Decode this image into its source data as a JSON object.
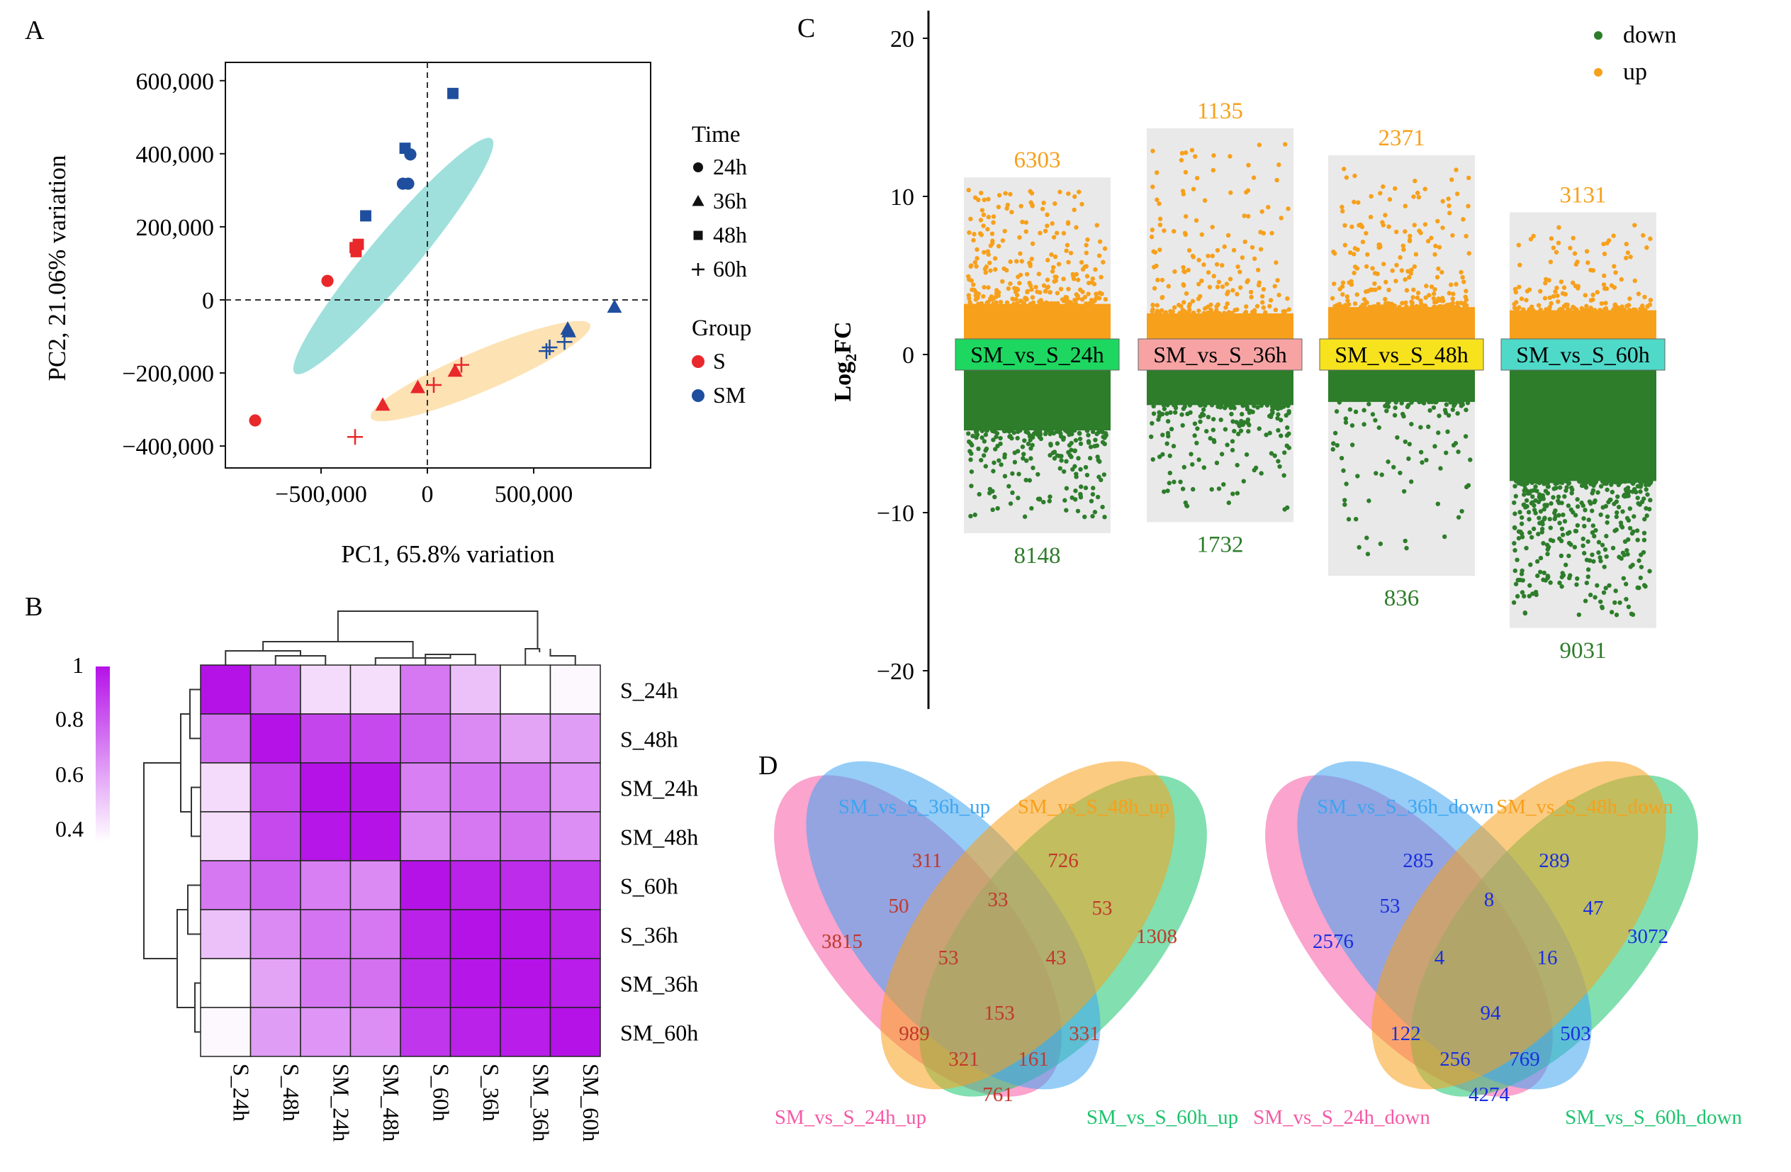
{
  "panels": {
    "A": {
      "letter": "A",
      "chart_data": {
        "type": "scatter",
        "title": "",
        "xlabel": "PC1, 65.8% variation",
        "ylabel": "PC2, 21.06% variation",
        "xlim": [
          -950000,
          1050000
        ],
        "ylim": [
          -460000,
          650000
        ],
        "xticks": [
          {
            "v": -500000,
            "label": "−500,000"
          },
          {
            "v": 0,
            "label": "0"
          },
          {
            "v": 500000,
            "label": "500,000"
          }
        ],
        "yticks": [
          {
            "v": 600000,
            "label": "600,000"
          },
          {
            "v": 400000,
            "label": "400,000"
          },
          {
            "v": 200000,
            "label": "200,000"
          },
          {
            "v": 0,
            "label": "0"
          },
          {
            "v": -200000,
            "label": "−200,000"
          },
          {
            "v": -400000,
            "label": "−400,000"
          }
        ],
        "ellipses": [
          {
            "name": "cluster-1",
            "color": "#9fe0dc",
            "cx": -160000,
            "cy": 120000,
            "rx": 720000,
            "ry": 110000,
            "angle_deg": 50
          },
          {
            "name": "cluster-2",
            "color": "#fde2b4",
            "cx": 250000,
            "cy": -195000,
            "rx": 560000,
            "ry": 95000,
            "angle_deg": 23
          }
        ],
        "points": [
          {
            "x": 120000,
            "y": 565000,
            "time": "48h",
            "group": "SM"
          },
          {
            "x": -105000,
            "y": 415000,
            "time": "48h",
            "group": "SM"
          },
          {
            "x": -80000,
            "y": 398000,
            "time": "24h",
            "group": "SM"
          },
          {
            "x": -115000,
            "y": 318000,
            "time": "24h",
            "group": "SM"
          },
          {
            "x": -90000,
            "y": 318000,
            "time": "24h",
            "group": "SM"
          },
          {
            "x": -290000,
            "y": 230000,
            "time": "48h",
            "group": "SM"
          },
          {
            "x": -325000,
            "y": 152000,
            "time": "48h",
            "group": "S"
          },
          {
            "x": -340000,
            "y": 143000,
            "time": "48h",
            "group": "S"
          },
          {
            "x": -335000,
            "y": 132000,
            "time": "48h",
            "group": "S"
          },
          {
            "x": -470000,
            "y": 52000,
            "time": "24h",
            "group": "S"
          },
          {
            "x": -810000,
            "y": -330000,
            "time": "24h",
            "group": "S"
          },
          {
            "x": 880000,
            "y": -20000,
            "time": "36h",
            "group": "SM"
          },
          {
            "x": 660000,
            "y": -80000,
            "time": "36h",
            "group": "SM"
          },
          {
            "x": 665000,
            "y": -87000,
            "time": "36h",
            "group": "SM"
          },
          {
            "x": 645000,
            "y": -115000,
            "time": "60h",
            "group": "SM"
          },
          {
            "x": 575000,
            "y": -130000,
            "time": "60h",
            "group": "SM"
          },
          {
            "x": 560000,
            "y": -140000,
            "time": "60h",
            "group": "SM"
          },
          {
            "x": 160000,
            "y": -178000,
            "time": "60h",
            "group": "S"
          },
          {
            "x": 130000,
            "y": -195000,
            "time": "36h",
            "group": "S"
          },
          {
            "x": 30000,
            "y": -233000,
            "time": "60h",
            "group": "S"
          },
          {
            "x": -45000,
            "y": -240000,
            "time": "36h",
            "group": "S"
          },
          {
            "x": -210000,
            "y": -288000,
            "time": "36h",
            "group": "S"
          },
          {
            "x": -340000,
            "y": -375000,
            "time": "60h",
            "group": "S"
          }
        ],
        "legend": {
          "time_title": "Time",
          "time_items": [
            {
              "label": "24h",
              "shape": "circle"
            },
            {
              "label": "36h",
              "shape": "triangle"
            },
            {
              "label": "48h",
              "shape": "square"
            },
            {
              "label": "60h",
              "shape": "plus"
            }
          ],
          "group_title": "Group",
          "group_items": [
            {
              "label": "S",
              "color": "#e8282b"
            },
            {
              "label": "SM",
              "color": "#1f4e9e"
            }
          ],
          "position": "right"
        }
      }
    },
    "B": {
      "letter": "B",
      "chart_data": {
        "type": "heatmap",
        "title": "",
        "rows": [
          "S_24h",
          "S_48h",
          "SM_24h",
          "SM_48h",
          "S_60h",
          "S_36h",
          "SM_36h",
          "SM_60h"
        ],
        "cols": [
          "S_24h",
          "S_48h",
          "SM_24h",
          "SM_48h",
          "S_60h",
          "S_36h",
          "SM_36h",
          "SM_60h"
        ],
        "values": [
          [
            1.0,
            0.75,
            0.45,
            0.44,
            0.72,
            0.52,
            0.35,
            0.37
          ],
          [
            0.75,
            1.0,
            0.86,
            0.85,
            0.78,
            0.67,
            0.6,
            0.62
          ],
          [
            0.45,
            0.86,
            1.0,
            0.99,
            0.7,
            0.73,
            0.72,
            0.64
          ],
          [
            0.44,
            0.85,
            0.99,
            1.0,
            0.67,
            0.72,
            0.74,
            0.66
          ],
          [
            0.72,
            0.78,
            0.7,
            0.67,
            1.0,
            0.96,
            0.93,
            0.9
          ],
          [
            0.52,
            0.67,
            0.73,
            0.72,
            0.96,
            1.0,
            0.99,
            0.96
          ],
          [
            0.35,
            0.6,
            0.72,
            0.74,
            0.93,
            0.99,
            1.0,
            0.97
          ],
          [
            0.37,
            0.62,
            0.64,
            0.66,
            0.9,
            0.96,
            0.97,
            1.0
          ]
        ],
        "colorbar": {
          "ticks": [
            "1",
            "0.8",
            "0.6",
            "0.4"
          ],
          "low_color": "#ffffff",
          "high_color": "#b512e8"
        }
      }
    },
    "C": {
      "letter": "C",
      "chart_data": {
        "type": "scatter",
        "title": "",
        "ylabel_main": "Log",
        "ylabel_sub": "2",
        "ylabel_tail": "FC",
        "ylim": [
          -22,
          22
        ],
        "yticks": [
          {
            "v": 20,
            "label": "20"
          },
          {
            "v": 10,
            "label": "10"
          },
          {
            "v": 0,
            "label": "0"
          },
          {
            "v": -10,
            "label": "−10"
          },
          {
            "v": -20,
            "label": "−20"
          }
        ],
        "legend": [
          {
            "label": "down",
            "color": "#2d7d2a"
          },
          {
            "label": "up",
            "color": "#f7a01b"
          }
        ],
        "groups": [
          {
            "name": "SM_vs_S_24h",
            "label_color": "#1ed760",
            "up_count": "6303",
            "down_count": "8148",
            "up_max": 10.4,
            "down_min": -10.5
          },
          {
            "name": "SM_vs_S_36h",
            "label_color": "#f7a3a3",
            "up_count": "1135",
            "down_count": "1732",
            "up_max": 13.5,
            "down_min": -9.8
          },
          {
            "name": "SM_vs_S_48h",
            "label_color": "#f7e21e",
            "up_count": "2371",
            "down_count": "836",
            "up_max": 11.8,
            "down_min": -13.2
          },
          {
            "name": "SM_vs_S_60h",
            "label_color": "#4fd9c9",
            "up_count": "3131",
            "down_count": "9031",
            "up_max": 8.2,
            "down_min": -16.5
          }
        ]
      }
    },
    "D": {
      "letter": "D",
      "venn_up": {
        "sets": [
          "SM_vs_S_36h_up",
          "SM_vs_S_48h_up",
          "SM_vs_S_24h_up",
          "SM_vs_S_60h_up"
        ],
        "set_colors": [
          "#3ea4f0",
          "#f7a01b",
          "#f55aa6",
          "#1cc46e"
        ],
        "numbers": [
          "311",
          "726",
          "3815",
          "1308",
          "50",
          "33",
          "53",
          "53",
          "43",
          "989",
          "153",
          "331",
          "321",
          "161",
          "761"
        ]
      },
      "venn_down": {
        "sets": [
          "SM_vs_S_36h_down",
          "SM_vs_S_48h_down",
          "SM_vs_S_24h_down",
          "SM_vs_S_60h_down"
        ],
        "set_colors": [
          "#3ea4f0",
          "#f7a01b",
          "#f55aa6",
          "#1cc46e"
        ],
        "numbers": [
          "285",
          "289",
          "2576",
          "3072",
          "53",
          "8",
          "47",
          "4",
          "16",
          "122",
          "94",
          "503",
          "256",
          "769",
          "4274"
        ]
      },
      "number_color_up": "#c0392b",
      "number_color_down": "#1a2fe0"
    }
  }
}
